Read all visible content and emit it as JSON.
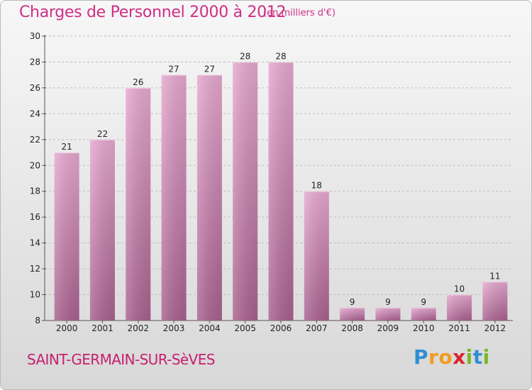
{
  "title": "Charges de Personnel 2000 à 2012",
  "subtitle": "(en milliers d'€)",
  "location": "SAINT-GERMAIN-SUR-SèVES",
  "brand": {
    "letters": [
      "P",
      "r",
      "o",
      "x",
      "i",
      "t",
      "i"
    ],
    "colors": [
      "#2f8fd3",
      "#f39a1f",
      "#f39a1f",
      "#d9242b",
      "#7ab829",
      "#2f8fd3",
      "#7ab829"
    ]
  },
  "colors": {
    "bar_top": "#e6a8cf",
    "bar_bottom": "#a8608e",
    "text": "#222222",
    "axis": "#555555",
    "grid": "#bdbdbd",
    "accent": "#cf2e86"
  },
  "chart_data": {
    "type": "bar",
    "categories": [
      "2000",
      "2001",
      "2002",
      "2003",
      "2004",
      "2005",
      "2006",
      "2007",
      "2008",
      "2009",
      "2010",
      "2011",
      "2012"
    ],
    "values": [
      21,
      22,
      26,
      27,
      27,
      28,
      28,
      18,
      9,
      9,
      9,
      10,
      11
    ],
    "data_labels": [
      "21",
      "22",
      "26",
      "27",
      "27",
      "28",
      "28",
      "18",
      "9",
      "9",
      "9",
      "10",
      "11"
    ],
    "ylim": [
      8,
      30
    ],
    "yticks": [
      8,
      10,
      12,
      14,
      16,
      18,
      20,
      22,
      24,
      26,
      28,
      30
    ],
    "ytick_labels": [
      "8",
      "10",
      "12",
      "14",
      "16",
      "18",
      "20",
      "22",
      "24",
      "26",
      "28",
      "30"
    ],
    "grid": true,
    "legend": "none"
  }
}
